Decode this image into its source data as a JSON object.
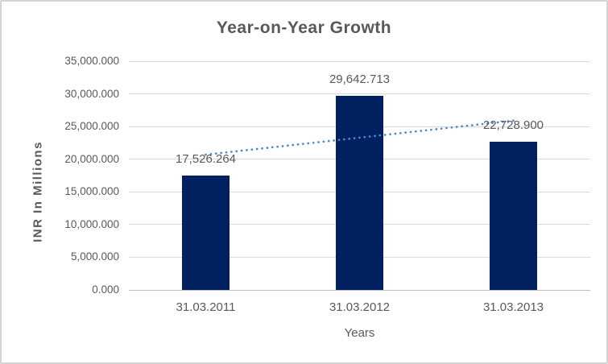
{
  "chart_data": {
    "type": "bar",
    "title": "Year-on-Year Growth",
    "xlabel": "Years",
    "ylabel": "INR In Millions",
    "categories": [
      "31.03.2011",
      "31.03.2012",
      "31.03.2013"
    ],
    "values": [
      17526.264,
      29642.713,
      22728.9
    ],
    "data_labels": [
      "17,526.264",
      "29,642.713",
      "22,728.900"
    ],
    "ylim": [
      0,
      35000
    ],
    "ytick_step": 5000,
    "ytick_labels": [
      "0.000",
      "5,000.000",
      "10,000.000",
      "15,000.000",
      "20,000.000",
      "25,000.000",
      "30,000.000",
      "35,000.000"
    ],
    "grid": true,
    "legend": false,
    "trendline": {
      "type": "linear",
      "style": "dotted"
    },
    "colors": {
      "bar": "#002060",
      "trendline": "#4E86D1",
      "text": "#595959",
      "gridline": "#D9D9D9",
      "axis_line": "#BFBFBF",
      "frame_border": "#D4D4D4",
      "background": "#FFFFFF"
    }
  }
}
